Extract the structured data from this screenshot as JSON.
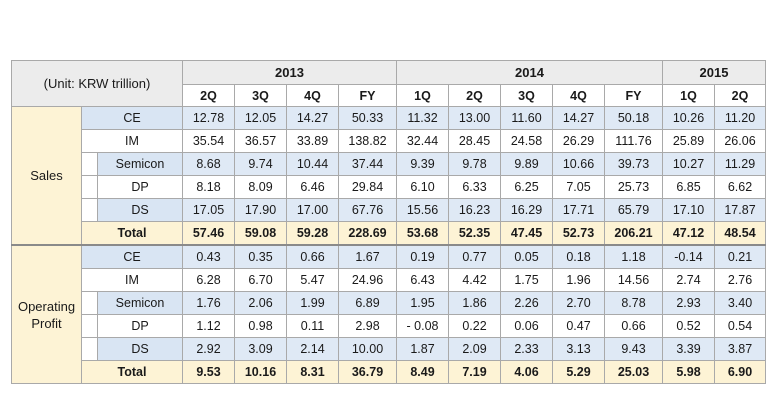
{
  "unit_label": "(Unit: KRW trillion)",
  "years": [
    {
      "label": "2013",
      "span": 4
    },
    {
      "label": "2014",
      "span": 5
    },
    {
      "label": "2015",
      "span": 2
    }
  ],
  "quarters": [
    "2Q",
    "3Q",
    "4Q",
    "FY",
    "1Q",
    "2Q",
    "3Q",
    "4Q",
    "FY",
    "1Q",
    "2Q"
  ],
  "groups": [
    {
      "label": "Sales",
      "rows": [
        {
          "segment": "CE",
          "indent": false,
          "values": [
            "12.78",
            "12.05",
            "14.27",
            "50.33",
            "11.32",
            "13.00",
            "11.60",
            "14.27",
            "50.18",
            "10.26",
            "11.20"
          ]
        },
        {
          "segment": "IM",
          "indent": false,
          "values": [
            "35.54",
            "36.57",
            "33.89",
            "138.82",
            "32.44",
            "28.45",
            "24.58",
            "26.29",
            "111.76",
            "25.89",
            "26.06"
          ]
        },
        {
          "segment": "Semicon",
          "indent": true,
          "values": [
            "8.68",
            "9.74",
            "10.44",
            "37.44",
            "9.39",
            "9.78",
            "9.89",
            "10.66",
            "39.73",
            "10.27",
            "11.29"
          ]
        },
        {
          "segment": "DP",
          "indent": true,
          "values": [
            "8.18",
            "8.09",
            "6.46",
            "29.84",
            "6.10",
            "6.33",
            "6.25",
            "7.05",
            "25.73",
            "6.85",
            "6.62"
          ]
        },
        {
          "segment": "DS",
          "indent": true,
          "values": [
            "17.05",
            "17.90",
            "17.00",
            "67.76",
            "15.56",
            "16.23",
            "16.29",
            "17.71",
            "65.79",
            "17.10",
            "17.87"
          ]
        },
        {
          "segment": "Total",
          "total": true,
          "values": [
            "57.46",
            "59.08",
            "59.28",
            "228.69",
            "53.68",
            "52.35",
            "47.45",
            "52.73",
            "206.21",
            "47.12",
            "48.54"
          ]
        }
      ]
    },
    {
      "label": "Operating Profit",
      "rows": [
        {
          "segment": "CE",
          "indent": false,
          "values": [
            "0.43",
            "0.35",
            "0.66",
            "1.67",
            "0.19",
            "0.77",
            "0.05",
            "0.18",
            "1.18",
            "-0.14",
            "0.21"
          ]
        },
        {
          "segment": "IM",
          "indent": false,
          "values": [
            "6.28",
            "6.70",
            "5.47",
            "24.96",
            "6.43",
            "4.42",
            "1.75",
            "1.96",
            "14.56",
            "2.74",
            "2.76"
          ]
        },
        {
          "segment": "Semicon",
          "indent": true,
          "values": [
            "1.76",
            "2.06",
            "1.99",
            "6.89",
            "1.95",
            "1.86",
            "2.26",
            "2.70",
            "8.78",
            "2.93",
            "3.40"
          ]
        },
        {
          "segment": "DP",
          "indent": true,
          "values": [
            "1.12",
            "0.98",
            "0.11",
            "2.98",
            "- 0.08",
            "0.22",
            "0.06",
            "0.47",
            "0.66",
            "0.52",
            "0.54"
          ]
        },
        {
          "segment": "DS",
          "indent": true,
          "values": [
            "2.92",
            "3.09",
            "2.14",
            "10.00",
            "1.87",
            "2.09",
            "2.33",
            "3.13",
            "9.43",
            "3.39",
            "3.87"
          ]
        },
        {
          "segment": "Total",
          "total": true,
          "values": [
            "9.53",
            "10.16",
            "8.31",
            "36.79",
            "8.49",
            "7.19",
            "4.06",
            "5.29",
            "25.03",
            "5.98",
            "6.90"
          ]
        }
      ]
    }
  ]
}
